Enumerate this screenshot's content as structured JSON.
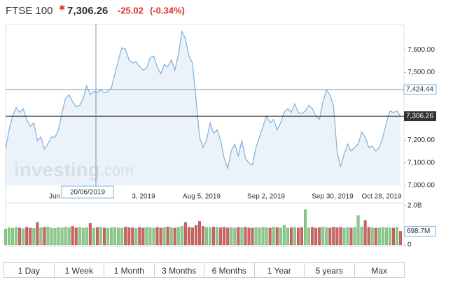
{
  "header": {
    "name": "FTSE 100",
    "price": "7,306.26",
    "change": "-25.02",
    "change_pct": "(-0.34%)"
  },
  "chart_data": {
    "type": "line",
    "values": [
      7162,
      7246,
      7308,
      7345,
      7323,
      7339,
      7292,
      7261,
      7277,
      7199,
      7214,
      7162,
      7183,
      7214,
      7214,
      7246,
      7323,
      7385,
      7401,
      7370,
      7348,
      7354,
      7385,
      7441,
      7401,
      7416,
      7410,
      7423,
      7410,
      7416,
      7432,
      7494,
      7556,
      7609,
      7603,
      7556,
      7541,
      7547,
      7525,
      7510,
      7519,
      7566,
      7572,
      7525,
      7494,
      7535,
      7525,
      7556,
      7510,
      7578,
      7681,
      7650,
      7572,
      7541,
      7385,
      7214,
      7168,
      7199,
      7277,
      7230,
      7246,
      7199,
      7121,
      7075,
      7152,
      7183,
      7131,
      7199,
      7121,
      7099,
      7090,
      7168,
      7214,
      7261,
      7308,
      7277,
      7292,
      7246,
      7277,
      7323,
      7339,
      7323,
      7361,
      7323,
      7317,
      7329,
      7354,
      7339,
      7308,
      7292,
      7370,
      7423,
      7401,
      7354,
      7152,
      7081,
      7137,
      7183,
      7152,
      7168,
      7183,
      7236,
      7214,
      7168,
      7174,
      7152,
      7168,
      7214,
      7277,
      7329,
      7323,
      7329,
      7306.26
    ],
    "color": "#7eb0dc",
    "fill": "#e6eff7",
    "ylim": [
      7000,
      7712
    ],
    "yticks": [
      {
        "value": 7000,
        "label": "7,000.00"
      },
      {
        "value": 7100,
        "label": "7,100.00"
      },
      {
        "value": 7200,
        "label": "7,200.00"
      },
      {
        "value": 7500,
        "label": "7,500.00"
      },
      {
        "value": 7600,
        "label": "7,600.00"
      }
    ],
    "xticks": [
      "Jun",
      "3, 2019",
      "Aug 5, 2019",
      "Sep 2, 2019",
      "Sep 30, 2019",
      "Oct 28, 2019"
    ],
    "last": {
      "value": 7306.26,
      "label": "7,306.26"
    },
    "crosshair": {
      "x_label": "20/06/2019",
      "value": 7424.44,
      "label": "7,424.44"
    },
    "watermark": {
      "brand": "investing",
      "suffix": ".com"
    },
    "volume": {
      "values": [
        820,
        880,
        850,
        900,
        870,
        830,
        910,
        860,
        840,
        1150,
        880,
        900,
        920,
        860,
        850,
        890,
        870,
        910,
        880,
        950,
        870,
        900,
        860,
        880,
        1100,
        860,
        890,
        910,
        870,
        850,
        880,
        900,
        870,
        860,
        920,
        890,
        880,
        850,
        900,
        870,
        910,
        880,
        860,
        900,
        870,
        890,
        920,
        880,
        860,
        900,
        950,
        1150,
        900,
        880,
        1000,
        1200,
        950,
        900,
        880,
        920,
        900,
        880,
        910,
        870,
        890,
        860,
        900,
        880,
        910,
        870,
        860,
        890,
        870,
        900,
        880,
        860,
        920,
        890,
        870,
        1000,
        860,
        880,
        900,
        870,
        890,
        1800,
        870,
        900,
        860,
        880,
        920,
        890,
        870,
        910,
        880,
        900,
        860,
        890,
        870,
        900,
        1500,
        920,
        1250,
        900,
        880,
        860,
        870,
        900,
        880,
        870,
        860,
        900,
        698.7
      ],
      "up_color": "#8cc98c",
      "down_color": "#c96464",
      "ylim": [
        0,
        2000
      ],
      "yticks": [
        0,
        {
          "value": 2000,
          "label": "2.0B"
        }
      ],
      "last": {
        "value": 698.7,
        "label": "698.7M"
      }
    }
  },
  "range_buttons": [
    "1 Day",
    "1 Week",
    "1 Month",
    "3 Months",
    "6 Months",
    "1 Year",
    "5 years",
    "Max"
  ]
}
